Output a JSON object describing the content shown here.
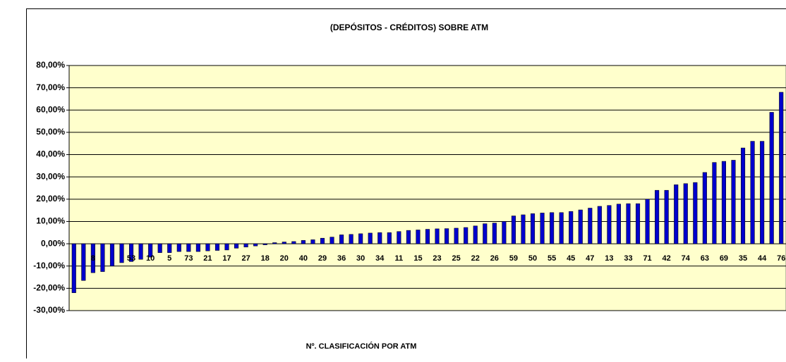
{
  "chart_data": {
    "type": "bar",
    "title": "(DEPÓSITOS - CRÉDITOS) SOBRE ATM",
    "x_label": "Nº. CLASIFICACIÓN POR ATM",
    "categories": [
      null,
      null,
      "8",
      null,
      null,
      null,
      "53",
      null,
      "10",
      null,
      "5",
      null,
      "73",
      null,
      "21",
      null,
      "17",
      null,
      "27",
      null,
      "18",
      null,
      "20",
      null,
      "40",
      null,
      "29",
      null,
      "36",
      null,
      "30",
      null,
      "34",
      null,
      "11",
      null,
      "15",
      null,
      "23",
      null,
      "25",
      null,
      "22",
      null,
      "26",
      null,
      "59",
      null,
      "50",
      null,
      "55",
      null,
      "45",
      null,
      "47",
      null,
      "13",
      null,
      "33",
      null,
      "71",
      null,
      "42",
      null,
      "74",
      null,
      "63",
      null,
      "69",
      null,
      "35",
      null,
      "44",
      null,
      "76"
    ],
    "values": [
      -22,
      -16.5,
      -13,
      -12.5,
      -10,
      -8.5,
      -8,
      -7,
      -6,
      -4,
      -4,
      -3.5,
      -3.5,
      -3.5,
      -3.2,
      -3,
      -2.8,
      -2,
      -1.5,
      -1,
      -0.5,
      0.5,
      0.8,
      1,
      1.5,
      1.8,
      2.5,
      3,
      4,
      4.2,
      4.5,
      4.8,
      5,
      5,
      5.5,
      6,
      6.2,
      6.5,
      6.7,
      6.8,
      7,
      7.3,
      8,
      9,
      9.3,
      10,
      12.5,
      13,
      13.5,
      13.8,
      14,
      14,
      14.5,
      15.2,
      16,
      16.8,
      17.2,
      17.8,
      18,
      18,
      20,
      24,
      24,
      26.5,
      27,
      27.5,
      32,
      36.5,
      37,
      37.5,
      43,
      46,
      46,
      59,
      68
    ],
    "color": "#0000cc",
    "ylim": [
      -30,
      80
    ],
    "yticks": [
      {
        "value": -30,
        "label": "-30,00%"
      },
      {
        "value": -20,
        "label": "-20,00%"
      },
      {
        "value": -10,
        "label": "-10,00%"
      },
      {
        "value": 0,
        "label": "0,00%"
      },
      {
        "value": 10,
        "label": "10,00%"
      },
      {
        "value": 20,
        "label": "20,00%"
      },
      {
        "value": 30,
        "label": "30,00%"
      },
      {
        "value": 40,
        "label": "40,00%"
      },
      {
        "value": 50,
        "label": "50,00%"
      },
      {
        "value": 60,
        "label": "60,00%"
      },
      {
        "value": 70,
        "label": "70,00%"
      },
      {
        "value": 80,
        "label": "80,00%"
      }
    ],
    "grid": true
  }
}
